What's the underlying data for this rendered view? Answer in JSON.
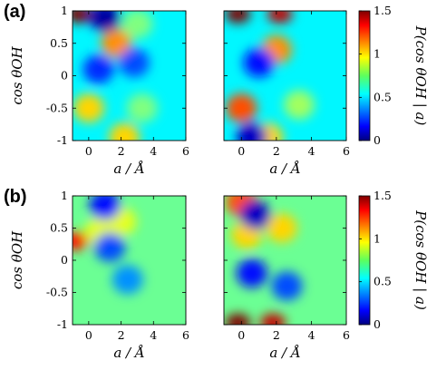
{
  "figure": {
    "panel_labels": [
      "(a)",
      "(b)"
    ]
  },
  "chart_data": [
    {
      "type": "heatmap",
      "row": "a",
      "column": "left",
      "xlabel": "a / Å",
      "ylabel": "cos θOH",
      "xlim": [
        -1,
        6
      ],
      "ylim": [
        -1,
        1
      ],
      "xticks": [
        "0",
        "2",
        "4",
        "6"
      ],
      "yticks": [
        "1",
        "0.5",
        "0",
        "-0.5",
        "-1"
      ],
      "colorbar": null,
      "features": [
        {
          "x": -0.6,
          "y": 0.95,
          "value": 1.5
        },
        {
          "x": 0.0,
          "y": -0.5,
          "value": 1.0
        },
        {
          "x": 1.7,
          "y": 0.5,
          "value": 1.1
        },
        {
          "x": 2.2,
          "y": -0.95,
          "value": 1.0
        },
        {
          "x": 3.0,
          "y": 0.8,
          "value": 0.75
        },
        {
          "x": 3.3,
          "y": -0.5,
          "value": 0.75
        },
        {
          "x": 1.0,
          "y": 0.9,
          "value": 0.05
        },
        {
          "x": 0.6,
          "y": 0.1,
          "value": 0.25
        },
        {
          "x": 2.8,
          "y": 0.2,
          "value": 0.3
        }
      ]
    },
    {
      "type": "heatmap",
      "row": "a",
      "column": "right",
      "xlabel": "a / Å",
      "ylabel": "",
      "xlim": [
        -1,
        6
      ],
      "ylim": [
        -1,
        1
      ],
      "xticks": [
        "0",
        "2",
        "4",
        "6"
      ],
      "yticks": [],
      "colorbar": {
        "label": "P(cos θOH | a)",
        "ticks": [
          "1.5",
          "1",
          "0.5",
          "0"
        ],
        "range": [
          0,
          1.5
        ]
      },
      "features": [
        {
          "x": -0.2,
          "y": 0.95,
          "value": 1.5
        },
        {
          "x": 2.2,
          "y": 0.95,
          "value": 1.4
        },
        {
          "x": 0.0,
          "y": -0.5,
          "value": 1.2
        },
        {
          "x": 2.0,
          "y": 0.4,
          "value": 1.1
        },
        {
          "x": 1.5,
          "y": -0.95,
          "value": 1.0
        },
        {
          "x": 3.3,
          "y": -0.45,
          "value": 0.8
        },
        {
          "x": 1.0,
          "y": 0.2,
          "value": 0.2
        },
        {
          "x": 0.6,
          "y": -0.95,
          "value": 0.1
        }
      ]
    },
    {
      "type": "heatmap",
      "row": "b",
      "column": "left",
      "xlabel": "a / Å",
      "ylabel": "cos θOH",
      "xlim": [
        -1,
        6
      ],
      "ylim": [
        -1,
        1
      ],
      "xticks": [
        "0",
        "2",
        "4",
        "6"
      ],
      "yticks": [
        "1",
        "0.5",
        "0",
        "-0.5",
        "-1"
      ],
      "colorbar": null,
      "features": [
        {
          "x": -0.8,
          "y": 0.3,
          "value": 1.3
        },
        {
          "x": 0.7,
          "y": 0.45,
          "value": 0.9
        },
        {
          "x": 2.0,
          "y": 0.6,
          "value": 0.9
        },
        {
          "x": 1.0,
          "y": 0.85,
          "value": 0.2
        },
        {
          "x": 1.3,
          "y": 0.2,
          "value": 0.3
        },
        {
          "x": 2.4,
          "y": -0.3,
          "value": 0.4
        }
      ]
    },
    {
      "type": "heatmap",
      "row": "b",
      "column": "right",
      "xlabel": "a / Å",
      "ylabel": "",
      "xlim": [
        -1,
        6
      ],
      "ylim": [
        -1,
        1
      ],
      "xticks": [
        "0",
        "2",
        "4",
        "6"
      ],
      "yticks": [],
      "colorbar": {
        "label": "P(cos θOH | a)",
        "ticks": [
          "1.5",
          "1",
          "0.5",
          "0"
        ],
        "range": [
          0,
          1.5
        ]
      },
      "features": [
        {
          "x": 0.0,
          "y": 0.9,
          "value": 1.2
        },
        {
          "x": -0.2,
          "y": -0.97,
          "value": 1.5
        },
        {
          "x": 1.8,
          "y": -0.97,
          "value": 1.4
        },
        {
          "x": 0.3,
          "y": 0.4,
          "value": 1.0
        },
        {
          "x": 2.3,
          "y": 0.5,
          "value": 1.0
        },
        {
          "x": 0.8,
          "y": 0.7,
          "value": 0.1
        },
        {
          "x": 0.6,
          "y": -0.2,
          "value": 0.2
        },
        {
          "x": 2.6,
          "y": -0.4,
          "value": 0.3
        }
      ]
    }
  ]
}
